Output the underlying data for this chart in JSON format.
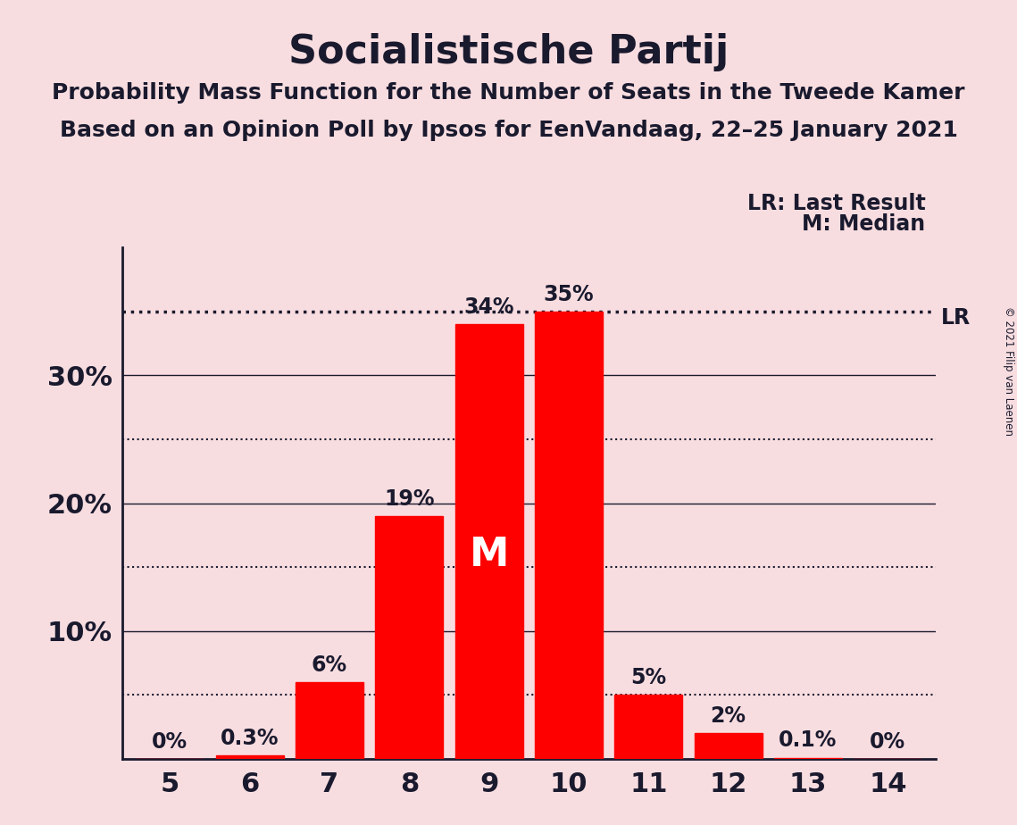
{
  "title": "Socialistische Partij",
  "subtitle1": "Probability Mass Function for the Number of Seats in the Tweede Kamer",
  "subtitle2": "Based on an Opinion Poll by Ipsos for EenVandaag, 22–25 January 2021",
  "copyright": "© 2021 Filip van Laenen",
  "categories": [
    5,
    6,
    7,
    8,
    9,
    10,
    11,
    12,
    13,
    14
  ],
  "values": [
    0.0,
    0.3,
    6.0,
    19.0,
    34.0,
    35.0,
    5.0,
    2.0,
    0.1,
    0.0
  ],
  "value_labels": [
    "0%",
    "0.3%",
    "6%",
    "19%",
    "34%",
    "35%",
    "5%",
    "2%",
    "0.1%",
    "0%"
  ],
  "bar_color": "#ff0000",
  "background_color": "#f8dde0",
  "ylim": [
    0,
    40
  ],
  "solid_gridlines": [
    10,
    20,
    30
  ],
  "dotted_gridlines": [
    5,
    15,
    25
  ],
  "ytick_positions": [
    10,
    20,
    30
  ],
  "ytick_labels": [
    "10%",
    "20%",
    "30%"
  ],
  "lr_value": 35.0,
  "lr_label": "LR",
  "lr_legend": "LR: Last Result",
  "median_seat": 9,
  "median_label": "M",
  "median_legend": "M: Median",
  "title_fontsize": 32,
  "subtitle_fontsize": 18,
  "label_fontsize": 17,
  "axis_fontsize": 22,
  "legend_fontsize": 17,
  "text_color": "#1a1a2e",
  "grid_color": "#1a1a2e"
}
